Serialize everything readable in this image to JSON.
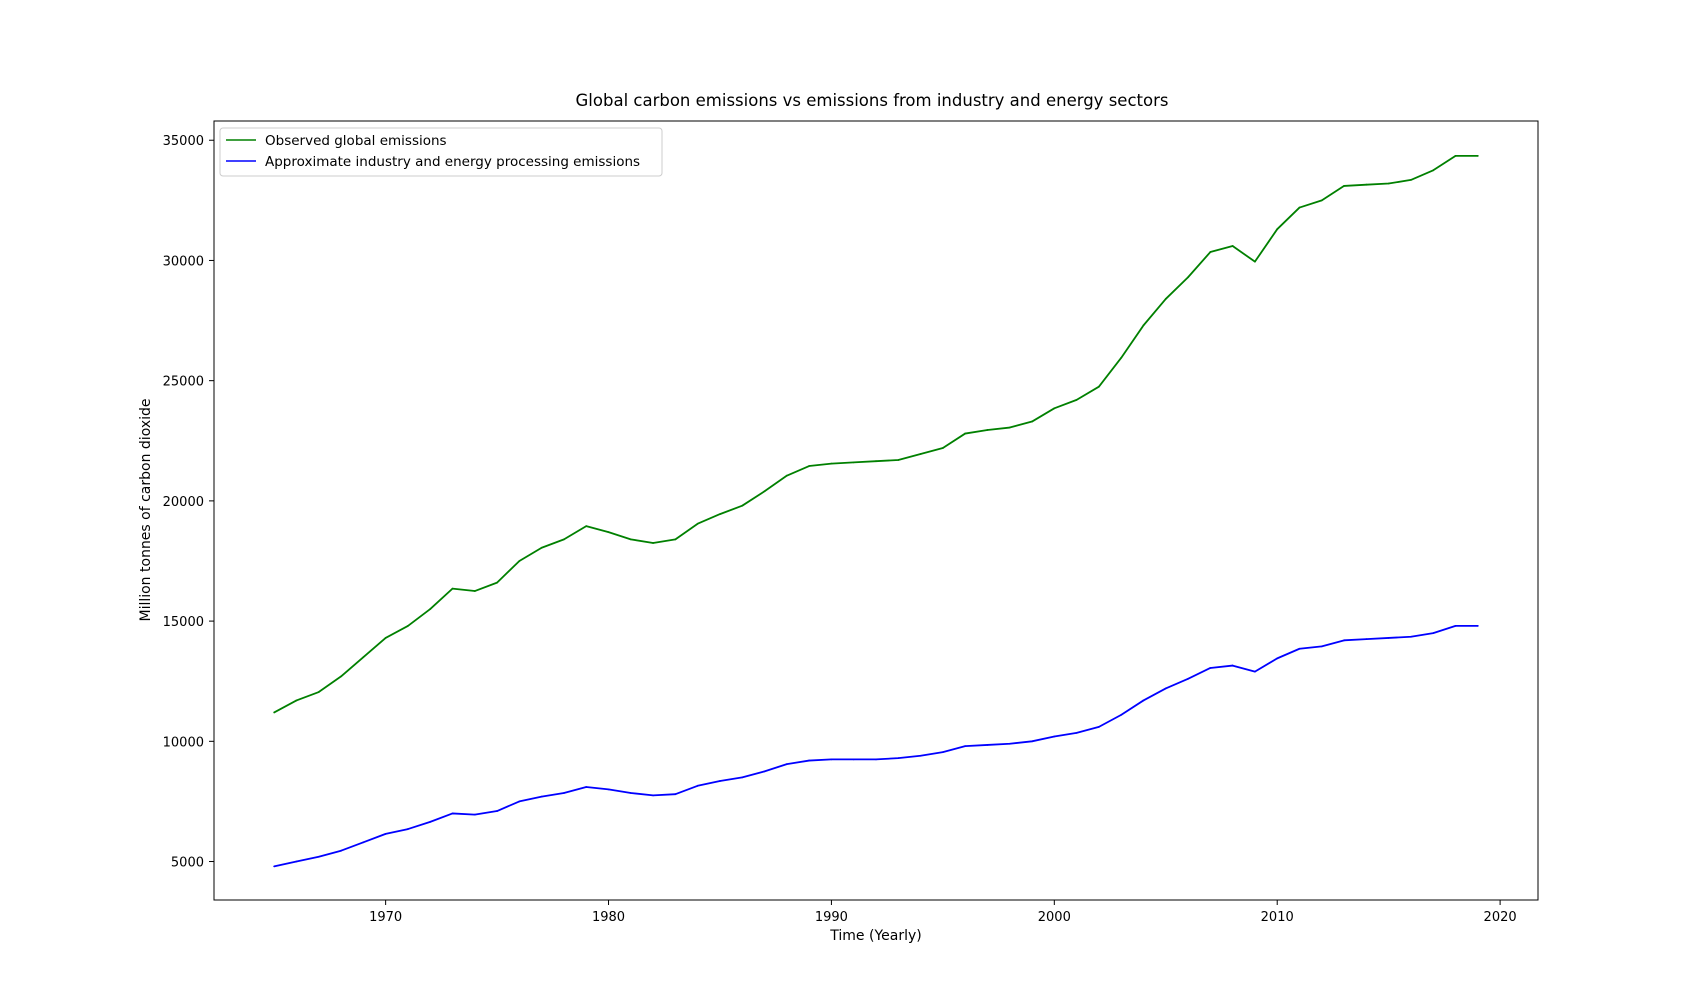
{
  "chart_data": {
    "type": "line",
    "title": "Global carbon emissions vs emissions from industry and energy sectors",
    "xlabel": "Time (Yearly)",
    "ylabel": "Million tonnes of carbon dioxide",
    "xlim": [
      1962.3,
      2021.7
    ],
    "ylim": [
      3400,
      35800
    ],
    "xticks": [
      1970,
      1980,
      1990,
      2000,
      2010,
      2020
    ],
    "yticks": [
      5000,
      10000,
      15000,
      20000,
      25000,
      30000,
      35000
    ],
    "grid": false,
    "legend_position": "top-left",
    "x": [
      1965,
      1966,
      1967,
      1968,
      1969,
      1970,
      1971,
      1972,
      1973,
      1974,
      1975,
      1976,
      1977,
      1978,
      1979,
      1980,
      1981,
      1982,
      1983,
      1984,
      1985,
      1986,
      1987,
      1988,
      1989,
      1990,
      1991,
      1992,
      1993,
      1994,
      1995,
      1996,
      1997,
      1998,
      1999,
      2000,
      2001,
      2002,
      2003,
      2004,
      2005,
      2006,
      2007,
      2008,
      2009,
      2010,
      2011,
      2012,
      2013,
      2014,
      2015,
      2016,
      2017,
      2018,
      2019
    ],
    "series": [
      {
        "name": "Observed global emissions",
        "color": "#008000",
        "values": [
          11200,
          11700,
          12050,
          12700,
          13500,
          14300,
          14800,
          15500,
          16350,
          16250,
          16600,
          17500,
          18050,
          18400,
          18950,
          18700,
          18400,
          18250,
          18400,
          19050,
          19450,
          19800,
          20400,
          21050,
          21450,
          21550,
          21600,
          21650,
          21700,
          21950,
          22200,
          22800,
          22950,
          23050,
          23300,
          23850,
          24200,
          24750,
          25950,
          27300,
          28400,
          29300,
          30350,
          30600,
          29950,
          31300,
          32200,
          32500,
          33100,
          33150,
          33200,
          33350,
          33750,
          34350,
          34350
        ]
      },
      {
        "name": "Approximate industry and energy processing emissions",
        "color": "#0000ff",
        "values": [
          4800,
          5000,
          5200,
          5450,
          5800,
          6150,
          6350,
          6650,
          7000,
          6950,
          7100,
          7500,
          7700,
          7850,
          8100,
          8000,
          7850,
          7750,
          7800,
          8150,
          8350,
          8500,
          8750,
          9050,
          9200,
          9250,
          9250,
          9250,
          9300,
          9400,
          9550,
          9800,
          9850,
          9900,
          10000,
          10200,
          10350,
          10600,
          11100,
          11700,
          12200,
          12600,
          13050,
          13150,
          12900,
          13450,
          13850,
          13950,
          14200,
          14250,
          14300,
          14350,
          14500,
          14800,
          14800
        ]
      }
    ]
  }
}
